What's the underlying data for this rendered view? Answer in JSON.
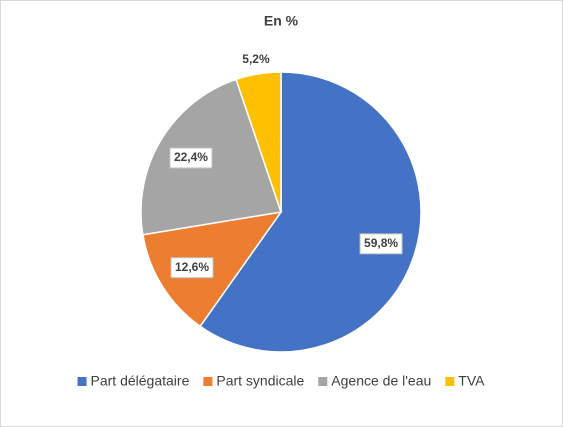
{
  "chart_data": {
    "type": "pie",
    "title": "En %",
    "categories": [
      "Part délégataire",
      "Part syndicale",
      "Agence de l'eau",
      "TVA"
    ],
    "values": [
      59.8,
      12.6,
      22.4,
      5.2
    ],
    "value_labels": [
      "59,8%",
      "12,6%",
      "22,4%",
      "5,2%"
    ],
    "colors": [
      "#4472c4",
      "#ed7d31",
      "#a5a5a5",
      "#ffc000"
    ]
  }
}
